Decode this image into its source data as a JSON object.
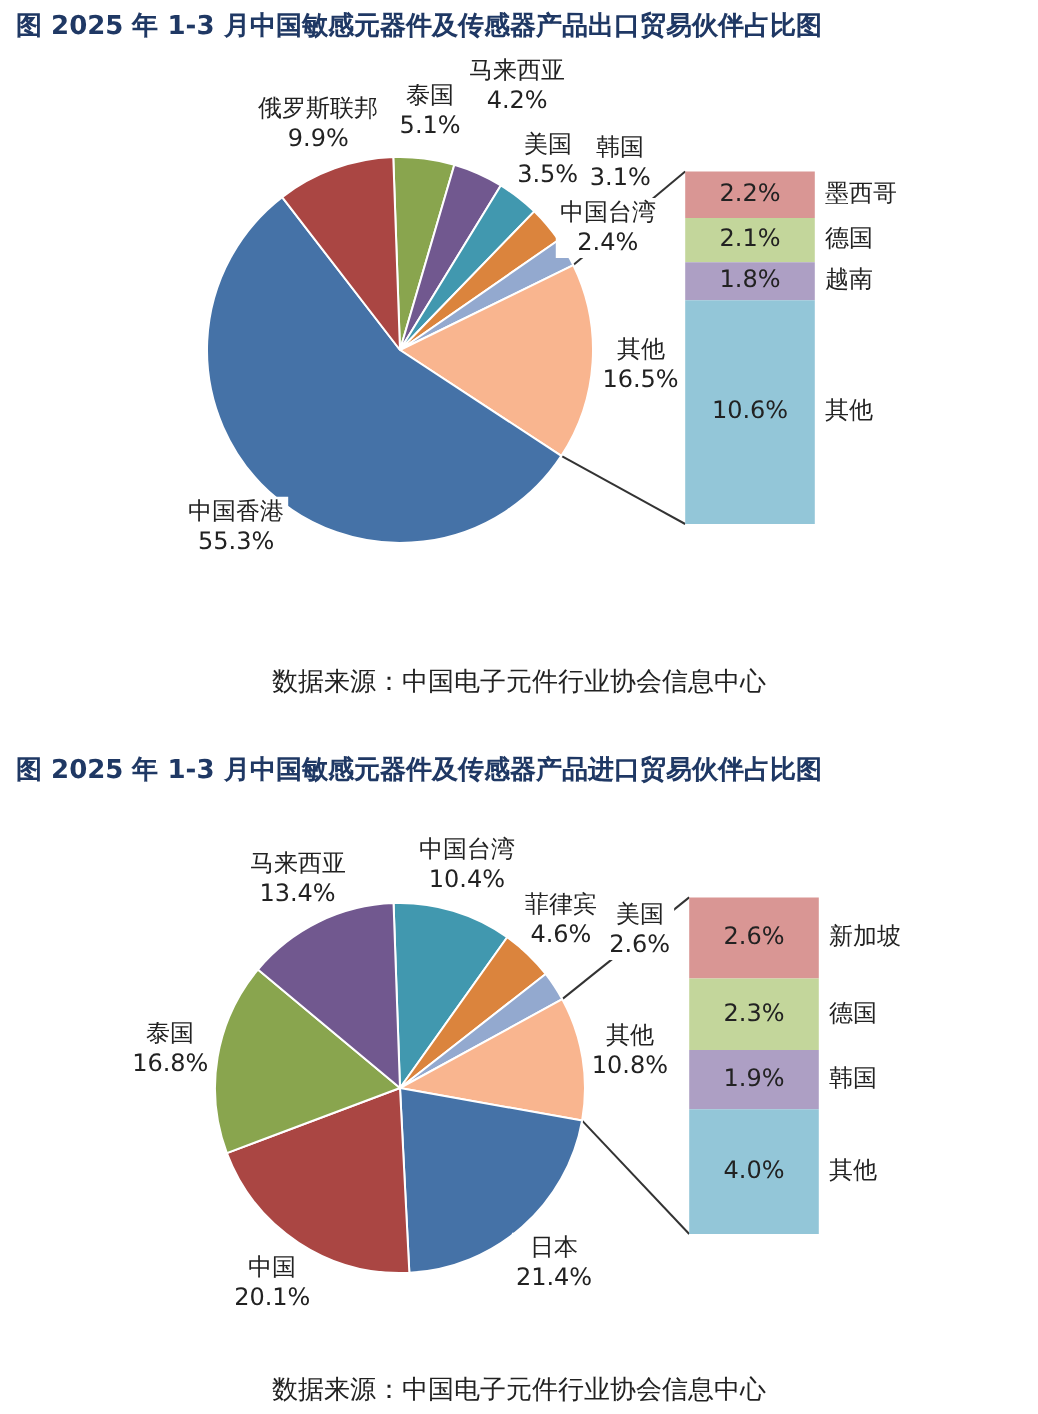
{
  "chart_data": [
    {
      "type": "pie",
      "title": "图    2025 年 1-3 月中国敏感元器件及传感器产品出口贸易伙伴占比图",
      "categories": [
        "泰国",
        "马来西亚",
        "美国",
        "韩国",
        "中国台湾",
        "其他",
        "中国香港",
        "俄罗斯联邦"
      ],
      "values": [
        5.1,
        4.2,
        3.5,
        3.1,
        2.4,
        16.5,
        55.3,
        9.9
      ],
      "colors": [
        "#89a54e",
        "#71588f",
        "#4198af",
        "#db843d",
        "#93a9cf",
        "#f9b58f",
        "#4572a7",
        "#aa4643"
      ],
      "value_labels": [
        "5.1%",
        "4.2%",
        "3.5%",
        "3.1%",
        "2.4%",
        "16.5%",
        "55.3%",
        "9.9%"
      ],
      "annotations": [
        "数据来源：中国电子元件行业协会信息中心"
      ]
    },
    {
      "type": "bar",
      "stacked": true,
      "categories": [
        null
      ],
      "series": [
        {
          "name": "其他",
          "color": "#93c6d8",
          "values": [
            10.6
          ],
          "value_labels": [
            "10.6%"
          ]
        },
        {
          "name": "越南",
          "color": "#ad9fc4",
          "values": [
            1.8
          ],
          "value_labels": [
            "1.8%"
          ]
        },
        {
          "name": "德国",
          "color": "#c3d69b",
          "values": [
            2.1
          ],
          "value_labels": [
            "2.1%"
          ]
        },
        {
          "name": "墨西哥",
          "color": "#d99694",
          "values": [
            2.2
          ],
          "value_labels": [
            "2.2%"
          ]
        }
      ]
    },
    {
      "type": "pie",
      "title": "图    2025 年 1-3 月中国敏感元器件及传感器产品进口贸易伙伴占比图",
      "categories": [
        "中国台湾",
        "菲律宾",
        "美国",
        "其他",
        "日本",
        "中国",
        "泰国",
        "马来西亚"
      ],
      "values": [
        10.4,
        4.6,
        2.6,
        10.8,
        21.4,
        20.1,
        16.8,
        13.4
      ],
      "colors": [
        "#4198af",
        "#db843d",
        "#93a9cf",
        "#f9b58f",
        "#4572a7",
        "#aa4643",
        "#89a54e",
        "#71588f"
      ],
      "value_labels": [
        "10.4%",
        "4.6%",
        "2.6%",
        "10.8%",
        "21.4%",
        "20.1%",
        "16.8%",
        "13.4%"
      ],
      "annotations": [
        "数据来源：中国电子元件行业协会信息中心"
      ]
    },
    {
      "type": "bar",
      "stacked": true,
      "categories": [
        null
      ],
      "series": [
        {
          "name": "其他",
          "color": "#93c6d8",
          "values": [
            4.0
          ],
          "value_labels": [
            "4.0%"
          ]
        },
        {
          "name": "韩国",
          "color": "#ad9fc4",
          "values": [
            1.9
          ],
          "value_labels": [
            "1.9%"
          ]
        },
        {
          "name": "德国",
          "color": "#c3d69b",
          "values": [
            2.3
          ],
          "value_labels": [
            "2.3%"
          ]
        },
        {
          "name": "新加坡",
          "color": "#d99694",
          "values": [
            2.6
          ],
          "value_labels": [
            "2.6%"
          ]
        }
      ]
    }
  ]
}
